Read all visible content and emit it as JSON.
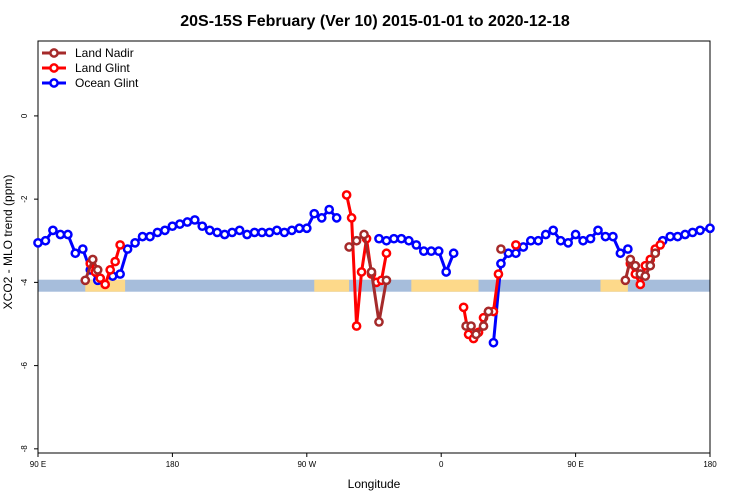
{
  "chart_data": {
    "type": "line",
    "title": "20S-15S February (Ver 10)   2015-01-01 to 2020-12-18",
    "xlabel": "Longitude",
    "ylabel": "XCO2 - MLO trend (ppm)",
    "xlim": [
      -270,
      0
    ],
    "ylim": [
      -8.1,
      1.8
    ],
    "x_ticks": [
      {
        "value": -270,
        "label": "90 E"
      },
      {
        "value": -216,
        "label": "180"
      },
      {
        "value": -162,
        "label": "90 W"
      },
      {
        "value": -108,
        "label": "0"
      },
      {
        "value": -54,
        "label": "90 E"
      },
      {
        "value": 0,
        "label": "180"
      }
    ],
    "y_ticks": [
      {
        "value": 0,
        "label": "0"
      },
      {
        "value": -2,
        "label": "-2"
      },
      {
        "value": -4,
        "label": "-4"
      },
      {
        "value": -6,
        "label": "-6"
      },
      {
        "value": -8,
        "label": "-8"
      }
    ],
    "legend_position": "top-left",
    "background_band": {
      "y_center": -4.08,
      "ocean_color": "#a6bddb",
      "land_color": "#fdd98a",
      "land_ranges": [
        [
          -251,
          -235
        ],
        [
          -159,
          -145
        ],
        [
          -120,
          -93
        ],
        [
          -44,
          -33
        ]
      ]
    },
    "series": [
      {
        "name": "Ocean Glint",
        "color": "#0000ff",
        "segments": [
          [
            [
              -270,
              -3.05
            ],
            [
              -267,
              -3.0
            ],
            [
              -264,
              -2.75
            ],
            [
              -261,
              -2.85
            ],
            [
              -258,
              -2.85
            ],
            [
              -255,
              -3.3
            ],
            [
              -252,
              -3.2
            ],
            [
              -249,
              -3.7
            ],
            [
              -246,
              -3.95
            ]
          ],
          [
            [
              -240,
              -3.85
            ],
            [
              -237,
              -3.8
            ],
            [
              -234,
              -3.2
            ],
            [
              -231,
              -3.05
            ],
            [
              -228,
              -2.9
            ],
            [
              -225,
              -2.9
            ],
            [
              -222,
              -2.8
            ],
            [
              -219,
              -2.75
            ],
            [
              -216,
              -2.65
            ],
            [
              -213,
              -2.6
            ],
            [
              -210,
              -2.55
            ],
            [
              -207,
              -2.5
            ],
            [
              -204,
              -2.65
            ],
            [
              -201,
              -2.75
            ],
            [
              -198,
              -2.8
            ],
            [
              -195,
              -2.85
            ],
            [
              -192,
              -2.8
            ],
            [
              -189,
              -2.75
            ],
            [
              -186,
              -2.85
            ],
            [
              -183,
              -2.8
            ],
            [
              -180,
              -2.8
            ],
            [
              -177,
              -2.8
            ],
            [
              -174,
              -2.75
            ],
            [
              -171,
              -2.8
            ],
            [
              -168,
              -2.75
            ],
            [
              -165,
              -2.7
            ],
            [
              -162,
              -2.7
            ],
            [
              -159,
              -2.35
            ],
            [
              -156,
              -2.45
            ],
            [
              -153,
              -2.25
            ],
            [
              -150,
              -2.45
            ]
          ],
          [
            [
              -133,
              -2.95
            ],
            [
              -130,
              -3.0
            ],
            [
              -127,
              -2.95
            ],
            [
              -124,
              -2.95
            ],
            [
              -121,
              -3.0
            ],
            [
              -118,
              -3.1
            ],
            [
              -115,
              -3.25
            ],
            [
              -112,
              -3.25
            ],
            [
              -109,
              -3.25
            ],
            [
              -106,
              -3.75
            ],
            [
              -103,
              -3.3
            ]
          ],
          [
            [
              -87,
              -5.45
            ],
            [
              -84,
              -3.55
            ],
            [
              -81,
              -3.3
            ],
            [
              -78,
              -3.3
            ],
            [
              -75,
              -3.15
            ],
            [
              -72,
              -3.0
            ],
            [
              -69,
              -3.0
            ],
            [
              -66,
              -2.85
            ],
            [
              -63,
              -2.75
            ],
            [
              -60,
              -3.0
            ],
            [
              -57,
              -3.05
            ],
            [
              -54,
              -2.85
            ],
            [
              -51,
              -3.0
            ],
            [
              -48,
              -2.95
            ],
            [
              -45,
              -2.75
            ],
            [
              -42,
              -2.9
            ],
            [
              -39,
              -2.9
            ],
            [
              -36,
              -3.3
            ],
            [
              -33,
              -3.2
            ]
          ],
          [
            [
              -28,
              -3.8
            ],
            [
              -25,
              -3.6
            ],
            [
              -22,
              -3.25
            ],
            [
              -19,
              -3.0
            ],
            [
              -16,
              -2.9
            ],
            [
              -13,
              -2.9
            ],
            [
              -10,
              -2.85
            ],
            [
              -7,
              -2.8
            ],
            [
              -4,
              -2.75
            ],
            [
              0,
              -2.7
            ]
          ]
        ]
      },
      {
        "name": "Land Glint",
        "color": "#ff0000",
        "segments": [
          [
            [
              -249,
              -3.55
            ],
            [
              -247,
              -3.75
            ],
            [
              -245,
              -3.9
            ],
            [
              -243,
              -4.05
            ],
            [
              -241,
              -3.7
            ],
            [
              -239,
              -3.5
            ],
            [
              -237,
              -3.1
            ]
          ],
          [
            [
              -146,
              -1.9
            ],
            [
              -144,
              -2.45
            ],
            [
              -142,
              -5.05
            ],
            [
              -140,
              -3.75
            ],
            [
              -138,
              -2.95
            ],
            [
              -136,
              -3.8
            ],
            [
              -134,
              -4.0
            ],
            [
              -132,
              -3.95
            ],
            [
              -130,
              -3.3
            ]
          ],
          [
            [
              -99,
              -4.6
            ],
            [
              -97,
              -5.25
            ],
            [
              -95,
              -5.35
            ],
            [
              -93,
              -5.2
            ],
            [
              -91,
              -4.85
            ],
            [
              -89,
              -4.7
            ],
            [
              -87,
              -4.7
            ],
            [
              -85,
              -3.8
            ]
          ],
          [
            [
              -78,
              -3.1
            ]
          ],
          [
            [
              -32,
              -3.55
            ],
            [
              -30,
              -3.8
            ],
            [
              -28,
              -4.05
            ],
            [
              -26,
              -3.6
            ],
            [
              -24,
              -3.45
            ],
            [
              -22,
              -3.2
            ],
            [
              -20,
              -3.1
            ]
          ]
        ]
      },
      {
        "name": "Land Nadir",
        "color": "#a52a2a",
        "segments": [
          [
            [
              -251,
              -3.95
            ],
            [
              -248,
              -3.45
            ],
            [
              -246,
              -3.7
            ]
          ],
          [
            [
              -145,
              -3.15
            ],
            [
              -142,
              -3.0
            ],
            [
              -139,
              -2.85
            ],
            [
              -136,
              -3.75
            ],
            [
              -133,
              -4.95
            ],
            [
              -130,
              -3.95
            ]
          ],
          [
            [
              -98,
              -5.05
            ],
            [
              -96,
              -5.05
            ],
            [
              -94,
              -5.25
            ],
            [
              -91,
              -5.05
            ],
            [
              -89,
              -4.7
            ]
          ],
          [
            [
              -84,
              -3.2
            ]
          ],
          [
            [
              -34,
              -3.95
            ],
            [
              -32,
              -3.45
            ],
            [
              -30,
              -3.6
            ],
            [
              -28,
              -3.8
            ],
            [
              -26,
              -3.85
            ],
            [
              -24,
              -3.6
            ],
            [
              -22,
              -3.3
            ]
          ]
        ]
      }
    ]
  }
}
